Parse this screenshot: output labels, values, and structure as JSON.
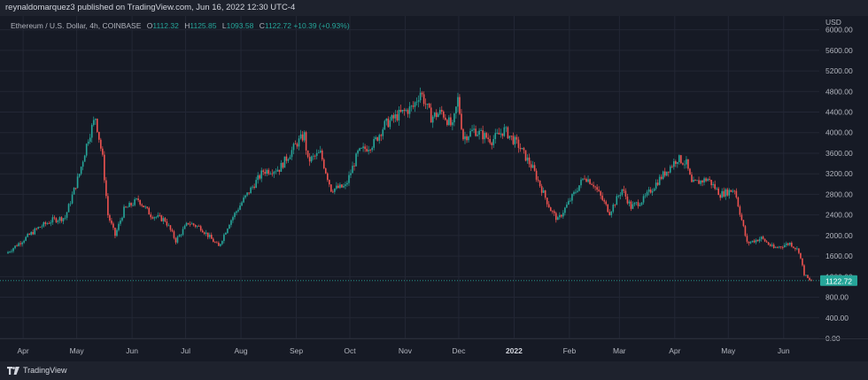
{
  "header": {
    "published_text": "reynaldomarquez3 published on TradingView.com, Jun 16, 2022 12:30 UTC-4"
  },
  "legend": {
    "symbol": "Ethereum / U.S. Dollar, 4h, COINBASE",
    "open_label": "O",
    "open": "1112.32",
    "high_label": "H",
    "high": "1125.85",
    "low_label": "L",
    "low": "1093.58",
    "close_label": "C",
    "close": "1122.72",
    "change": "+10.39 (+0.93%)"
  },
  "footer": {
    "brand": "TradingView"
  },
  "colors": {
    "up": "#26a69a",
    "down": "#ef5350",
    "grid": "#232735",
    "background": "#161a25",
    "text": "#b2b5be"
  },
  "chart_data": {
    "type": "candlestick",
    "symbol": "ETHUSD",
    "exchange": "COINBASE",
    "interval": "4h",
    "currency_label": "USD",
    "last_price": 1122.72,
    "last_price_label": "1122.72",
    "ylim": [
      0,
      6200
    ],
    "y_ticks": [
      "6000.00",
      "5600.00",
      "5200.00",
      "4800.00",
      "4400.00",
      "4000.00",
      "3600.00",
      "3200.00",
      "2800.00",
      "2400.00",
      "2000.00",
      "1600.00",
      "1200.00",
      "800.00",
      "400.00",
      "0.00"
    ],
    "x_ticks": [
      "Apr",
      "May",
      "Jun",
      "Jul",
      "Aug",
      "Sep",
      "Oct",
      "Nov",
      "Dec",
      "2022",
      "Feb",
      "Mar",
      "Apr",
      "May",
      "Jun"
    ],
    "x_range": [
      "2021-03-23",
      "2022-06-16"
    ],
    "price_path": [
      [
        "2021-03-23",
        1650
      ],
      [
        "2021-04-01",
        1900
      ],
      [
        "2021-04-10",
        2150
      ],
      [
        "2021-04-18",
        2300
      ],
      [
        "2021-04-25",
        2350
      ],
      [
        "2021-05-03",
        3200
      ],
      [
        "2021-05-08",
        3900
      ],
      [
        "2021-05-12",
        4300
      ],
      [
        "2021-05-16",
        3500
      ],
      [
        "2021-05-19",
        2400
      ],
      [
        "2021-05-23",
        2000
      ],
      [
        "2021-05-28",
        2500
      ],
      [
        "2021-06-05",
        2700
      ],
      [
        "2021-06-12",
        2400
      ],
      [
        "2021-06-20",
        2300
      ],
      [
        "2021-06-26",
        1900
      ],
      [
        "2021-07-03",
        2250
      ],
      [
        "2021-07-10",
        2150
      ],
      [
        "2021-07-20",
        1780
      ],
      [
        "2021-07-26",
        2250
      ],
      [
        "2021-08-03",
        2700
      ],
      [
        "2021-08-14",
        3250
      ],
      [
        "2021-08-23",
        3300
      ],
      [
        "2021-09-02",
        3800
      ],
      [
        "2021-09-06",
        3950
      ],
      [
        "2021-09-08",
        3450
      ],
      [
        "2021-09-15",
        3600
      ],
      [
        "2021-09-21",
        2900
      ],
      [
        "2021-09-29",
        2950
      ],
      [
        "2021-10-06",
        3600
      ],
      [
        "2021-10-15",
        3800
      ],
      [
        "2021-10-21",
        4150
      ],
      [
        "2021-10-29",
        4350
      ],
      [
        "2021-11-06",
        4500
      ],
      [
        "2021-11-10",
        4800
      ],
      [
        "2021-11-16",
        4300
      ],
      [
        "2021-11-22",
        4400
      ],
      [
        "2021-11-28",
        4100
      ],
      [
        "2021-12-01",
        4650
      ],
      [
        "2021-12-04",
        3900
      ],
      [
        "2021-12-10",
        4050
      ],
      [
        "2021-12-15",
        3950
      ],
      [
        "2021-12-20",
        3850
      ],
      [
        "2021-12-27",
        4050
      ],
      [
        "2022-01-04",
        3750
      ],
      [
        "2022-01-12",
        3300
      ],
      [
        "2022-01-22",
        2500
      ],
      [
        "2022-01-26",
        2300
      ],
      [
        "2022-02-03",
        2750
      ],
      [
        "2022-02-10",
        3150
      ],
      [
        "2022-02-15",
        3000
      ],
      [
        "2022-02-24",
        2450
      ],
      [
        "2022-03-03",
        2900
      ],
      [
        "2022-03-08",
        2550
      ],
      [
        "2022-03-15",
        2700
      ],
      [
        "2022-03-24",
        3100
      ],
      [
        "2022-04-03",
        3500
      ],
      [
        "2022-04-08",
        3400
      ],
      [
        "2022-04-11",
        3000
      ],
      [
        "2022-04-20",
        3100
      ],
      [
        "2022-04-27",
        2800
      ],
      [
        "2022-05-05",
        2900
      ],
      [
        "2022-05-09",
        2300
      ],
      [
        "2022-05-12",
        1850
      ],
      [
        "2022-05-20",
        1950
      ],
      [
        "2022-05-27",
        1750
      ],
      [
        "2022-06-05",
        1850
      ],
      [
        "2022-06-10",
        1700
      ],
      [
        "2022-06-13",
        1250
      ],
      [
        "2022-06-16",
        1122
      ]
    ]
  }
}
